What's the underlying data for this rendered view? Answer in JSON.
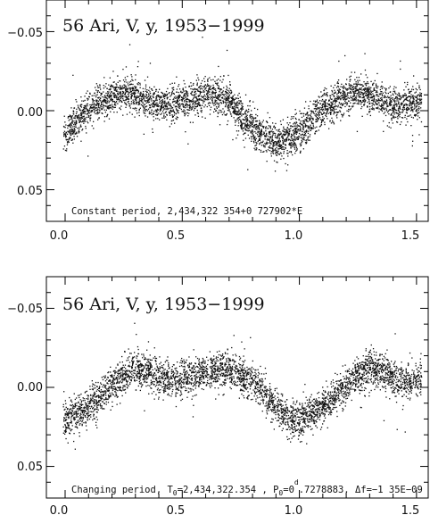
{
  "chart_data": [
    {
      "type": "scatter",
      "title": "56 Ari, V, y, 1953−1999",
      "xlim": [
        -0.08,
        1.55
      ],
      "ylim": [
        -0.07,
        0.07
      ],
      "y_inverted": true,
      "xticks": [
        0.0,
        0.5,
        1.0,
        1.5
      ],
      "xtick_labels": [
        "0.0",
        "0.5",
        "1.0",
        "1.5"
      ],
      "yticks": [
        -0.05,
        0.0,
        0.05
      ],
      "ytick_labels": [
        "−0.05",
        "0.00",
        "0.05"
      ],
      "annotation": {
        "text": "Constant period, 2,434,322 354+0 727902*E"
      },
      "light_curve_phase": [
        0.0,
        0.1,
        0.25,
        0.4,
        0.5,
        0.6,
        0.7,
        0.8,
        0.9,
        1.0,
        1.1,
        1.25,
        1.4,
        1.5
      ],
      "light_curve_mag": [
        0.014,
        -0.002,
        -0.013,
        -0.003,
        -0.006,
        -0.011,
        -0.007,
        0.011,
        0.02,
        0.014,
        -0.002,
        -0.013,
        -0.003,
        -0.006
      ],
      "points_approx": 4000,
      "scatter_sigma": 0.0055
    },
    {
      "type": "scatter",
      "title": "56 Ari, V, y, 1953−1999",
      "xlim": [
        -0.08,
        1.55
      ],
      "ylim": [
        -0.07,
        0.07
      ],
      "y_inverted": true,
      "xticks": [
        0.0,
        0.5,
        1.0,
        1.5
      ],
      "xtick_labels": [
        "0.0",
        "0.5",
        "1.0",
        "1.5"
      ],
      "yticks": [
        -0.05,
        0.0,
        0.05
      ],
      "ytick_labels": [
        "−0.05",
        "0.00",
        "0.05"
      ],
      "annotation": {
        "prefix": "Changing period, T",
        "t_sub": "0",
        "t_value": "=2,434,322.354 , P",
        "p_sub": "0",
        "p_value": "=0",
        "p_sup": "d",
        "p_rest": ".7278883, Δf=−1 35E−09"
      },
      "light_curve_phase": [
        0.0,
        0.1,
        0.2,
        0.3,
        0.45,
        0.6,
        0.7,
        0.8,
        0.95,
        1.0,
        1.1,
        1.2,
        1.3,
        1.45,
        1.55
      ],
      "light_curve_mag": [
        0.02,
        0.012,
        -0.002,
        -0.013,
        -0.004,
        -0.01,
        -0.012,
        -0.004,
        0.02,
        0.02,
        0.012,
        -0.002,
        -0.013,
        -0.004,
        -0.006
      ],
      "points_approx": 4000,
      "scatter_sigma": 0.0055
    }
  ]
}
